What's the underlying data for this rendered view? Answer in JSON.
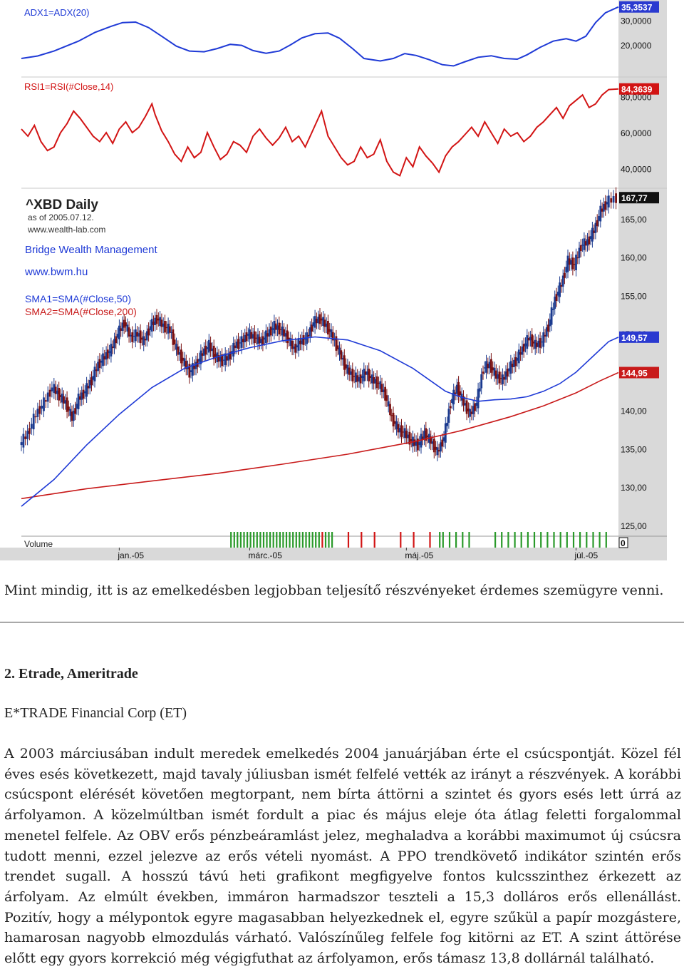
{
  "chart_data": {
    "type": "line",
    "symbol": "^XBD Daily",
    "asof": "as of 2005.07.12.",
    "site": "www.wealth-lab.com",
    "company": "Bridge Wealth Management",
    "company_url": "www.bwm.hu",
    "x_ticks": [
      "jan.-05",
      "márc.-05",
      "máj.-05",
      "júl.-05"
    ],
    "volume_label": "Volume",
    "volume_value": "0",
    "panels": [
      {
        "name": "ADX1=ADX(20)",
        "ticks": [
          "30,0000",
          "20,0000"
        ],
        "tick_values": [
          30,
          20
        ],
        "ylim": [
          7,
          37
        ],
        "last": "35,3537",
        "color": "#1f3ad6",
        "series": [
          [
            0,
            14.5
          ],
          [
            10,
            15.5
          ],
          [
            20,
            17.5
          ],
          [
            35,
            21.5
          ],
          [
            45,
            25
          ],
          [
            55,
            27.5
          ],
          [
            62,
            29
          ],
          [
            70,
            29.2
          ],
          [
            78,
            27
          ],
          [
            86,
            23.5
          ],
          [
            95,
            19.5
          ],
          [
            103,
            17.5
          ],
          [
            112,
            17.2
          ],
          [
            120,
            18.5
          ],
          [
            128,
            20.2
          ],
          [
            135,
            19.8
          ],
          [
            142,
            17.7
          ],
          [
            150,
            16.6
          ],
          [
            158,
            17.5
          ],
          [
            165,
            20
          ],
          [
            172,
            22.8
          ],
          [
            180,
            24.5
          ],
          [
            188,
            24.8
          ],
          [
            195,
            22.7
          ],
          [
            203,
            18.5
          ],
          [
            210,
            14.5
          ],
          [
            220,
            13.5
          ],
          [
            228,
            14.5
          ],
          [
            235,
            16.5
          ],
          [
            242,
            15.7
          ],
          [
            250,
            14
          ],
          [
            258,
            12
          ],
          [
            265,
            11.5
          ],
          [
            272,
            13.2
          ],
          [
            280,
            15
          ],
          [
            288,
            15.6
          ],
          [
            296,
            14.5
          ],
          [
            304,
            14.2
          ],
          [
            310,
            16
          ],
          [
            318,
            19
          ],
          [
            326,
            21.5
          ],
          [
            334,
            22.5
          ],
          [
            340,
            21.5
          ],
          [
            346,
            23.5
          ],
          [
            352,
            29
          ],
          [
            358,
            33
          ],
          [
            366,
            35.35
          ]
        ]
      },
      {
        "name": "RSI1=RSI(#Close,14)",
        "ticks": [
          "80,0000",
          "60,0000",
          "40,0000"
        ],
        "tick_values": [
          80,
          60,
          40
        ],
        "ylim": [
          29,
          91
        ],
        "last": "84,3639",
        "color": "#d21414",
        "series": [
          [
            0,
            62
          ],
          [
            4,
            58
          ],
          [
            8,
            64
          ],
          [
            12,
            55
          ],
          [
            16,
            50
          ],
          [
            20,
            52
          ],
          [
            24,
            60
          ],
          [
            28,
            65
          ],
          [
            32,
            72
          ],
          [
            36,
            68
          ],
          [
            40,
            63
          ],
          [
            44,
            58
          ],
          [
            48,
            55
          ],
          [
            52,
            60
          ],
          [
            56,
            54
          ],
          [
            60,
            62
          ],
          [
            64,
            66
          ],
          [
            68,
            60
          ],
          [
            72,
            63
          ],
          [
            76,
            69
          ],
          [
            80,
            76
          ],
          [
            82,
            70
          ],
          [
            86,
            61
          ],
          [
            90,
            55
          ],
          [
            94,
            48
          ],
          [
            98,
            44
          ],
          [
            102,
            52
          ],
          [
            106,
            46
          ],
          [
            110,
            49
          ],
          [
            114,
            60
          ],
          [
            118,
            52
          ],
          [
            122,
            45
          ],
          [
            126,
            48
          ],
          [
            130,
            55
          ],
          [
            134,
            53
          ],
          [
            138,
            49
          ],
          [
            142,
            58
          ],
          [
            146,
            62
          ],
          [
            150,
            57
          ],
          [
            154,
            53
          ],
          [
            158,
            57
          ],
          [
            162,
            63
          ],
          [
            166,
            55
          ],
          [
            170,
            58
          ],
          [
            174,
            52
          ],
          [
            178,
            60
          ],
          [
            182,
            68
          ],
          [
            184,
            72
          ],
          [
            188,
            58
          ],
          [
            192,
            52
          ],
          [
            196,
            46
          ],
          [
            200,
            42
          ],
          [
            204,
            44
          ],
          [
            208,
            52
          ],
          [
            212,
            46
          ],
          [
            216,
            48
          ],
          [
            220,
            56
          ],
          [
            224,
            44
          ],
          [
            228,
            38
          ],
          [
            232,
            36
          ],
          [
            236,
            46
          ],
          [
            240,
            41
          ],
          [
            244,
            52
          ],
          [
            248,
            47
          ],
          [
            252,
            43
          ],
          [
            256,
            38
          ],
          [
            260,
            47
          ],
          [
            264,
            52
          ],
          [
            268,
            55
          ],
          [
            272,
            59
          ],
          [
            276,
            63
          ],
          [
            280,
            58
          ],
          [
            284,
            66
          ],
          [
            288,
            60
          ],
          [
            292,
            54
          ],
          [
            296,
            62
          ],
          [
            300,
            58
          ],
          [
            304,
            60
          ],
          [
            308,
            55
          ],
          [
            312,
            58
          ],
          [
            316,
            63
          ],
          [
            320,
            66
          ],
          [
            324,
            70
          ],
          [
            328,
            74
          ],
          [
            332,
            68
          ],
          [
            336,
            75
          ],
          [
            340,
            78
          ],
          [
            344,
            81
          ],
          [
            348,
            74
          ],
          [
            352,
            76
          ],
          [
            356,
            81
          ],
          [
            360,
            84
          ],
          [
            366,
            84.36
          ]
        ]
      },
      {
        "name": "^XBD Daily",
        "ticks": [
          "165,00",
          "160,00",
          "155,00",
          "150,00",
          "145,00",
          "140,00",
          "135,00",
          "130,00",
          "125,00"
        ],
        "tick_values": [
          165,
          160,
          155,
          150,
          145,
          140,
          135,
          130,
          125
        ],
        "ylim": [
          123.6,
          169.0
        ],
        "last": "167,77",
        "close": [
          [
            0,
            135.5
          ],
          [
            5,
            137
          ],
          [
            10,
            139.5
          ],
          [
            15,
            141
          ],
          [
            20,
            143
          ],
          [
            24,
            142
          ],
          [
            28,
            141
          ],
          [
            32,
            139
          ],
          [
            36,
            141.5
          ],
          [
            40,
            142.5
          ],
          [
            44,
            144
          ],
          [
            48,
            146
          ],
          [
            52,
            147
          ],
          [
            56,
            148
          ],
          [
            60,
            150
          ],
          [
            64,
            151.5
          ],
          [
            68,
            149.5
          ],
          [
            72,
            150
          ],
          [
            76,
            149
          ],
          [
            80,
            151
          ],
          [
            84,
            152
          ],
          [
            88,
            151
          ],
          [
            92,
            150.5
          ],
          [
            96,
            148
          ],
          [
            100,
            146.5
          ],
          [
            104,
            145
          ],
          [
            108,
            146
          ],
          [
            112,
            147.5
          ],
          [
            116,
            148.5
          ],
          [
            120,
            147
          ],
          [
            124,
            146.5
          ],
          [
            128,
            147
          ],
          [
            132,
            148.5
          ],
          [
            136,
            149
          ],
          [
            140,
            150
          ],
          [
            144,
            149.5
          ],
          [
            148,
            149
          ],
          [
            152,
            150
          ],
          [
            156,
            151
          ],
          [
            160,
            150.5
          ],
          [
            164,
            149.5
          ],
          [
            168,
            148
          ],
          [
            172,
            149
          ],
          [
            176,
            149.5
          ],
          [
            180,
            151.5
          ],
          [
            184,
            152
          ],
          [
            188,
            151
          ],
          [
            192,
            149.5
          ],
          [
            196,
            147.5
          ],
          [
            200,
            145.5
          ],
          [
            204,
            144.5
          ],
          [
            208,
            144
          ],
          [
            212,
            145
          ],
          [
            216,
            144
          ],
          [
            220,
            143.5
          ],
          [
            224,
            142
          ],
          [
            228,
            139
          ],
          [
            232,
            137.5
          ],
          [
            236,
            137
          ],
          [
            240,
            136
          ],
          [
            244,
            135.5
          ],
          [
            248,
            137
          ],
          [
            252,
            136
          ],
          [
            256,
            134.5
          ],
          [
            260,
            136.5
          ],
          [
            264,
            141
          ],
          [
            268,
            143
          ],
          [
            272,
            141
          ],
          [
            276,
            139.5
          ],
          [
            280,
            141
          ],
          [
            284,
            145.5
          ],
          [
            288,
            146
          ],
          [
            292,
            144.5
          ],
          [
            296,
            144
          ],
          [
            300,
            145.5
          ],
          [
            304,
            146.5
          ],
          [
            308,
            148
          ],
          [
            312,
            149.5
          ],
          [
            316,
            148.5
          ],
          [
            320,
            149
          ],
          [
            324,
            151
          ],
          [
            328,
            154.5
          ],
          [
            332,
            156.5
          ],
          [
            336,
            159.5
          ],
          [
            340,
            159
          ],
          [
            344,
            161.5
          ],
          [
            348,
            162
          ],
          [
            352,
            163.5
          ],
          [
            356,
            166
          ],
          [
            360,
            167.2
          ],
          [
            366,
            167.77
          ]
        ],
        "sma50": {
          "name": "SMA1=SMA(#Close,50)",
          "last": "149,57",
          "color": "#1f3ad6",
          "series": [
            [
              0,
              127.5
            ],
            [
              20,
              131
            ],
            [
              40,
              135.5
            ],
            [
              60,
              139.5
            ],
            [
              80,
              143
            ],
            [
              100,
              145.5
            ],
            [
              120,
              147
            ],
            [
              140,
              148.2
            ],
            [
              160,
              149.1
            ],
            [
              180,
              149.6
            ],
            [
              200,
              149.2
            ],
            [
              220,
              147.8
            ],
            [
              240,
              145.5
            ],
            [
              250,
              144
            ],
            [
              260,
              142.5
            ],
            [
              270,
              141.7
            ],
            [
              280,
              141.2
            ],
            [
              290,
              141.4
            ],
            [
              300,
              141.5
            ],
            [
              310,
              141.8
            ],
            [
              320,
              142.5
            ],
            [
              330,
              143.5
            ],
            [
              340,
              145
            ],
            [
              350,
              147
            ],
            [
              360,
              149
            ],
            [
              366,
              149.57
            ]
          ]
        },
        "sma200": {
          "name": "SMA2=SMA(#Close,200)",
          "last": "144,95",
          "color": "#c81a1a",
          "series": [
            [
              0,
              128.5
            ],
            [
              40,
              129.8
            ],
            [
              80,
              130.8
            ],
            [
              120,
              131.8
            ],
            [
              160,
              133
            ],
            [
              200,
              134.3
            ],
            [
              240,
              135.9
            ],
            [
              270,
              137.4
            ],
            [
              300,
              139.2
            ],
            [
              320,
              140.6
            ],
            [
              340,
              142.3
            ],
            [
              355,
              143.9
            ],
            [
              366,
              144.95
            ]
          ]
        }
      }
    ],
    "volume_up_bars": [
      128,
      130,
      132,
      134,
      136,
      138,
      140,
      142,
      144,
      146,
      148,
      150,
      152,
      154,
      156,
      158,
      160,
      162,
      164,
      166,
      168,
      170,
      172,
      174,
      176,
      178,
      180,
      182,
      186,
      188,
      190,
      256,
      258,
      262,
      266,
      270,
      274,
      290,
      294,
      298,
      302,
      306,
      310,
      314,
      318,
      322,
      326,
      330,
      334,
      338,
      342,
      346,
      350,
      354,
      358
    ],
    "volume_down_bars": [
      184,
      200,
      208,
      216,
      232,
      240,
      250
    ]
  },
  "caption": "Mint mindig, itt is az emelkedésben legjobban teljesítő részvényeket érdemes szemügyre venni.",
  "heading": "2. Etrade, Ameritrade",
  "subheading": "E*TRADE Financial Corp (ET)",
  "body": "A 2003 márciusában indult meredek emelkedés 2004 januárjában érte el csúcspontját. Közel fél éves esés következett, majd tavaly júliusban ismét felfelé vették az irányt a részvények. A korábbi csúcspont elérését követően megtorpant, nem bírta áttörni a szintet és gyors esés lett úrrá az árfolyamon. A közelmúltban ismét fordult a piac és május eleje óta átlag feletti forgalommal menetel felfele. Az OBV erős pénzbeáramlást jelez, meghaladva a korábbi maximumot új csúcsra tudott menni, ezzel jelezve az erős vételi nyomást. A PPO trendkövető indikátor szintén erős trendet sugall. A hosszú távú heti grafikont megfigyelve fontos kulcsszinthez érkezett az árfolyam. Az elmúlt években, immáron harmadszor teszteli a 15,3 dolláros erős ellenállást. Pozitív, hogy a mélypontok egyre magasabban helyezkednek el, egyre szűkül a papír mozgástere, hamarosan nagyobb elmozdulás várható. Valószínűleg felfele fog kitörni az ET. A szint áttörése előtt egy gyors korrekció még végigfuthat az árfolyamon, erős támasz 13,8 dollárnál található."
}
